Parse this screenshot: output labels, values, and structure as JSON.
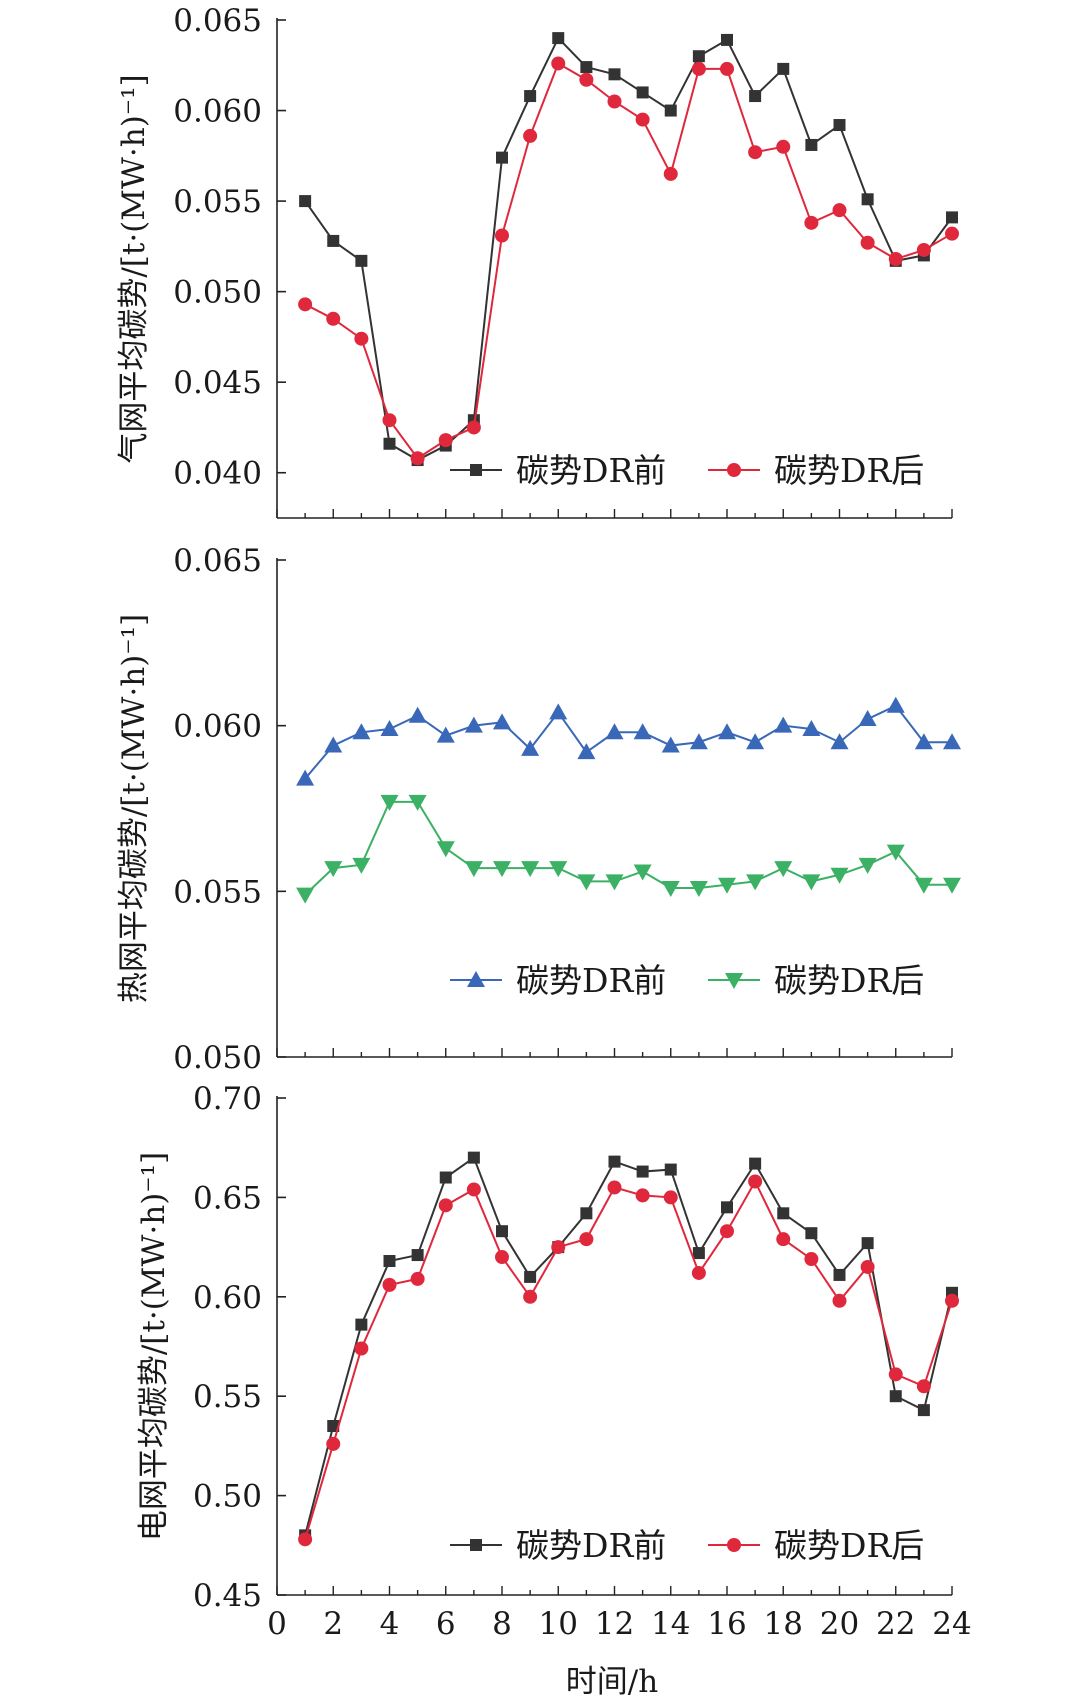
{
  "x_axis": {
    "label": "时间/h",
    "range": [
      0,
      24
    ],
    "ticks": [
      "0",
      "2",
      "4",
      "6",
      "8",
      "10",
      "12",
      "14",
      "16",
      "18",
      "20",
      "22",
      "24"
    ]
  },
  "chart_data": [
    {
      "type": "line",
      "ylabel": "气网平均碳势/[t·(MW·h)⁻¹]",
      "xlim": [
        0,
        24
      ],
      "ylim": [
        0.0375,
        0.065
      ],
      "yticks": [
        "0.040",
        "0.045",
        "0.050",
        "0.055",
        "0.060",
        "0.065"
      ],
      "legend_position": "bottom-right",
      "x": [
        1,
        2,
        3,
        4,
        5,
        6,
        7,
        8,
        9,
        10,
        11,
        12,
        13,
        14,
        15,
        16,
        17,
        18,
        19,
        20,
        21,
        22,
        23,
        24
      ],
      "series": [
        {
          "name": "碳势DR前",
          "color": "#333333",
          "marker": "square",
          "values": [
            0.055,
            0.0528,
            0.0517,
            0.0416,
            0.0407,
            0.0415,
            0.0429,
            0.0574,
            0.0608,
            0.064,
            0.0624,
            0.062,
            0.061,
            0.06,
            0.063,
            0.0639,
            0.0608,
            0.0623,
            0.0581,
            0.0592,
            0.0551,
            0.0517,
            0.052,
            0.0541
          ]
        },
        {
          "name": "碳势DR后",
          "color": "#e0283c",
          "marker": "circle",
          "values": [
            0.0493,
            0.0485,
            0.0474,
            0.0429,
            0.0408,
            0.0418,
            0.0425,
            0.0531,
            0.0586,
            0.0626,
            0.0617,
            0.0605,
            0.0595,
            0.0565,
            0.0623,
            0.0623,
            0.0577,
            0.058,
            0.0538,
            0.0545,
            0.0527,
            0.0518,
            0.0523,
            0.0532
          ]
        }
      ]
    },
    {
      "type": "line",
      "ylabel": "热网平均碳势/[t·(MW·h)⁻¹]",
      "xlim": [
        0,
        24
      ],
      "ylim": [
        0.05,
        0.065
      ],
      "yticks": [
        "0.050",
        "0.055",
        "0.060",
        "0.065"
      ],
      "legend_position": "bottom-right",
      "x": [
        1,
        2,
        3,
        4,
        5,
        6,
        7,
        8,
        9,
        10,
        11,
        12,
        13,
        14,
        15,
        16,
        17,
        18,
        19,
        20,
        21,
        22,
        23,
        24
      ],
      "series": [
        {
          "name": "碳势DR前",
          "color": "#3a68b8",
          "marker": "triangle-up",
          "values": [
            0.0584,
            0.0594,
            0.0598,
            0.0599,
            0.0603,
            0.0597,
            0.06,
            0.0601,
            0.0593,
            0.0604,
            0.0592,
            0.0598,
            0.0598,
            0.0594,
            0.0595,
            0.0598,
            0.0595,
            0.06,
            0.0599,
            0.0595,
            0.0602,
            0.0606,
            0.0595,
            0.0595
          ]
        },
        {
          "name": "碳势DR后",
          "color": "#3cb064",
          "marker": "triangle-down",
          "values": [
            0.0549,
            0.0557,
            0.0558,
            0.0577,
            0.0577,
            0.0563,
            0.0557,
            0.0557,
            0.0557,
            0.0557,
            0.0553,
            0.0553,
            0.0556,
            0.0551,
            0.0551,
            0.0552,
            0.0553,
            0.0557,
            0.0553,
            0.0555,
            0.0558,
            0.0562,
            0.0552,
            0.0552
          ]
        }
      ]
    },
    {
      "type": "line",
      "ylabel": "电网平均碳势/[t·(MW·h)⁻¹]",
      "xlim": [
        0,
        24
      ],
      "ylim": [
        0.45,
        0.7
      ],
      "yticks": [
        "0.45",
        "0.50",
        "0.55",
        "0.60",
        "0.65",
        "0.70"
      ],
      "legend_position": "bottom-right",
      "x": [
        1,
        2,
        3,
        4,
        5,
        6,
        7,
        8,
        9,
        10,
        11,
        12,
        13,
        14,
        15,
        16,
        17,
        18,
        19,
        20,
        21,
        22,
        23,
        24
      ],
      "series": [
        {
          "name": "碳势DR前",
          "color": "#333333",
          "marker": "square",
          "values": [
            0.48,
            0.535,
            0.586,
            0.618,
            0.621,
            0.66,
            0.67,
            0.633,
            0.61,
            0.625,
            0.642,
            0.668,
            0.663,
            0.664,
            0.622,
            0.645,
            0.667,
            0.642,
            0.632,
            0.611,
            0.627,
            0.55,
            0.543,
            0.602
          ]
        },
        {
          "name": "碳势DR后",
          "color": "#e0283c",
          "marker": "circle",
          "values": [
            0.478,
            0.526,
            0.574,
            0.606,
            0.609,
            0.646,
            0.654,
            0.62,
            0.6,
            0.625,
            0.629,
            0.655,
            0.651,
            0.65,
            0.612,
            0.633,
            0.658,
            0.629,
            0.619,
            0.598,
            0.615,
            0.561,
            0.555,
            0.598
          ]
        }
      ]
    }
  ]
}
